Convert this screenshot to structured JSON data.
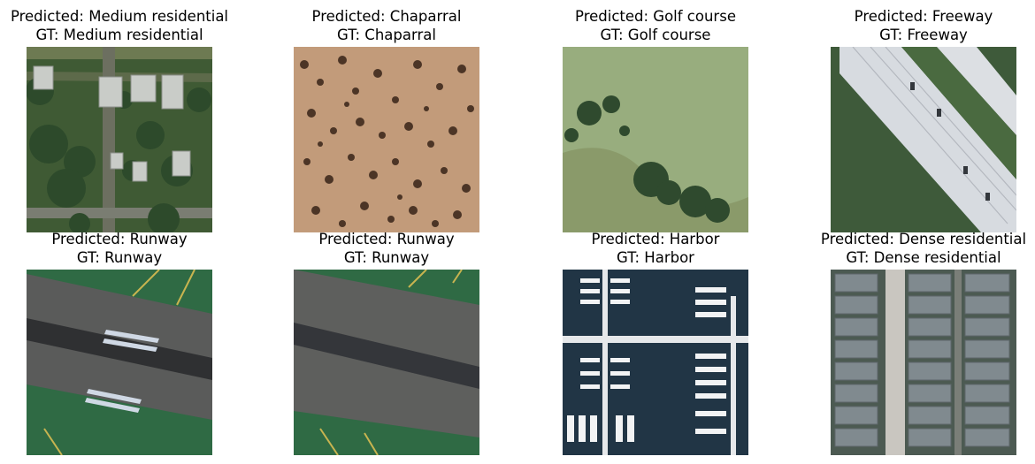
{
  "panels": [
    {
      "predicted": "Predicted: Medium residential",
      "gt": "GT: Medium residential",
      "scene": "medium-residential"
    },
    {
      "predicted": "Predicted: Chaparral",
      "gt": "GT: Chaparral",
      "scene": "chaparral"
    },
    {
      "predicted": "Predicted: Golf course",
      "gt": "GT: Golf course",
      "scene": "golf-course"
    },
    {
      "predicted": "Predicted: Freeway",
      "gt": "GT: Freeway",
      "scene": "freeway"
    },
    {
      "predicted": "Predicted: Runway",
      "gt": "GT: Runway",
      "scene": "runway"
    },
    {
      "predicted": "Predicted: Runway",
      "gt": "GT: Runway",
      "scene": "runway"
    },
    {
      "predicted": "Predicted: Harbor",
      "gt": "GT: Harbor",
      "scene": "harbor"
    },
    {
      "predicted": "Predicted: Dense residential",
      "gt": "GT: Dense residential",
      "scene": "dense-residential"
    }
  ]
}
